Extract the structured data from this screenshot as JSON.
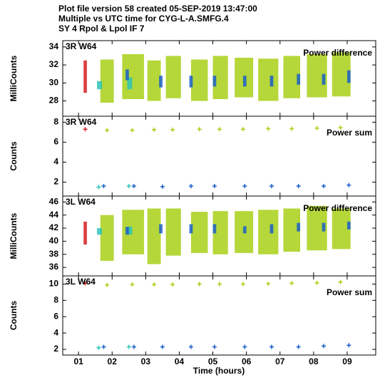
{
  "header": {
    "lines": [
      "Plot file version 58  created 05-SEP-2019 13:47:00",
      "Multiple vs UTC time for CYG-L-A.SMFG.4",
      "SY 4  Rpol & Lpol  IF 7"
    ]
  },
  "x_axis": {
    "label": "Time (hours)",
    "xlim": [
      0.53,
      9.85
    ],
    "xticks": [
      {
        "value": 1,
        "label": "01"
      },
      {
        "value": 2,
        "label": "02"
      },
      {
        "value": 3,
        "label": "03"
      },
      {
        "value": 4,
        "label": "04"
      },
      {
        "value": 5,
        "label": "05"
      },
      {
        "value": 6,
        "label": "06"
      },
      {
        "value": 7,
        "label": "07"
      },
      {
        "value": 8,
        "label": "08"
      },
      {
        "value": 9,
        "label": "09"
      }
    ]
  },
  "chart_data": [
    {
      "type": "range",
      "ylabel": "MilliCounts",
      "panel_label": "3R W64",
      "legend_text": "Power difference",
      "ylim": [
        26.3,
        34.7
      ],
      "yticks": [
        28,
        30,
        32,
        34
      ],
      "series": [
        {
          "color": "#a8d017",
          "start": [
            1.65,
            2.3,
            3.05,
            3.6,
            4.35,
            5.0,
            5.65,
            6.35,
            7.1,
            7.8,
            8.55
          ],
          "end": [
            2.05,
            2.95,
            3.45,
            4.05,
            4.85,
            5.45,
            6.2,
            6.95,
            7.6,
            8.4,
            9.1
          ],
          "low": [
            27.8,
            28.2,
            28.0,
            28.3,
            28.0,
            28.2,
            28.4,
            28.0,
            28.3,
            28.4,
            28.5
          ],
          "high": [
            32.6,
            33.2,
            32.5,
            33.0,
            32.6,
            33.0,
            32.8,
            32.7,
            33.0,
            33.2,
            33.4
          ]
        },
        {
          "color": "#d62020",
          "start": [
            1.15
          ],
          "end": [
            1.25
          ],
          "low": [
            28.9
          ],
          "high": [
            32.5
          ]
        },
        {
          "color": "#2ec4b8",
          "start": [
            1.55,
            2.45
          ],
          "end": [
            1.7,
            2.6
          ],
          "low": [
            29.3,
            29.3
          ],
          "high": [
            30.2,
            30.6
          ]
        },
        {
          "color": "#1a5fc8",
          "start": [
            2.4,
            3.4,
            4.3,
            5.0,
            5.9,
            6.7,
            7.5,
            8.25,
            9.0
          ],
          "end": [
            2.5,
            3.5,
            4.4,
            5.1,
            6.0,
            6.8,
            7.6,
            8.35,
            9.1
          ],
          "low": [
            30.3,
            29.5,
            29.5,
            29.6,
            29.6,
            29.6,
            29.8,
            29.8,
            30.0
          ],
          "high": [
            31.5,
            30.8,
            30.8,
            30.8,
            30.8,
            30.8,
            31.0,
            31.0,
            31.4
          ]
        }
      ]
    },
    {
      "type": "scatter",
      "ylabel": "Counts",
      "panel_label": "3R W64",
      "legend_text": "Power sum",
      "ylim": [
        0.6,
        8.6
      ],
      "yticks": [
        2,
        4,
        6,
        8
      ],
      "series": [
        {
          "color": "#a8d017",
          "x": [
            1.85,
            2.6,
            3.25,
            3.8,
            4.6,
            5.2,
            5.9,
            6.65,
            7.35,
            8.1,
            8.8
          ],
          "values": [
            7.2,
            7.2,
            7.25,
            7.25,
            7.3,
            7.3,
            7.3,
            7.35,
            7.35,
            7.4,
            7.45
          ]
        },
        {
          "color": "#d62020",
          "x": [
            1.2
          ],
          "values": [
            7.3
          ]
        },
        {
          "color": "#2ec4b8",
          "x": [
            1.6,
            2.5
          ],
          "values": [
            1.5,
            1.6
          ]
        },
        {
          "color": "#1a5fc8",
          "x": [
            1.75,
            2.65,
            3.5,
            4.35,
            5.05,
            5.95,
            6.75,
            7.55,
            8.3,
            9.05
          ],
          "values": [
            1.6,
            1.6,
            1.55,
            1.6,
            1.6,
            1.6,
            1.6,
            1.6,
            1.6,
            1.7
          ]
        }
      ]
    },
    {
      "type": "range",
      "ylabel": "MilliCounts",
      "panel_label": "3L W64",
      "legend_text": "Power difference",
      "ylim": [
        34.7,
        46.9
      ],
      "yticks": [
        36,
        38,
        40,
        42,
        44,
        46
      ],
      "series": [
        {
          "color": "#a8d017",
          "start": [
            1.65,
            2.3,
            3.05,
            3.6,
            4.35,
            5.0,
            5.65,
            6.35,
            7.1,
            7.8,
            8.55
          ],
          "end": [
            2.05,
            2.95,
            3.45,
            4.05,
            4.85,
            5.45,
            6.2,
            6.95,
            7.6,
            8.4,
            9.1
          ],
          "low": [
            37.0,
            38.0,
            36.5,
            37.8,
            38.2,
            38.0,
            38.2,
            38.0,
            38.4,
            38.6,
            38.8
          ],
          "high": [
            44.0,
            44.8,
            45.0,
            45.0,
            44.5,
            44.6,
            44.6,
            44.8,
            45.0,
            45.4,
            45.0
          ]
        },
        {
          "color": "#d62020",
          "start": [
            1.15
          ],
          "end": [
            1.25
          ],
          "low": [
            39.5
          ],
          "high": [
            43.0
          ]
        },
        {
          "color": "#2ec4b8",
          "start": [
            1.55,
            2.45
          ],
          "end": [
            1.7,
            2.6
          ],
          "low": [
            41.0,
            41.0
          ],
          "high": [
            42.0,
            42.2
          ]
        },
        {
          "color": "#1a5fc8",
          "start": [
            2.4,
            3.4,
            4.3,
            5.0,
            5.9,
            6.7,
            7.5,
            8.25,
            9.0
          ],
          "end": [
            2.5,
            3.5,
            4.4,
            5.1,
            6.0,
            6.8,
            7.6,
            8.35,
            9.1
          ],
          "low": [
            41.0,
            41.2,
            41.2,
            41.2,
            41.2,
            41.2,
            41.5,
            41.5,
            41.8
          ],
          "high": [
            42.2,
            42.6,
            42.6,
            42.6,
            42.3,
            42.6,
            42.8,
            42.8,
            43.0
          ]
        }
      ]
    },
    {
      "type": "scatter",
      "ylabel": "Counts",
      "panel_label": "3L W64",
      "legend_text": "Power sum",
      "ylim": [
        1.3,
        11.0
      ],
      "yticks": [
        2,
        4,
        6,
        8,
        10
      ],
      "series": [
        {
          "color": "#a8d017",
          "x": [
            1.85,
            2.6,
            3.25,
            3.8,
            4.6,
            5.2,
            5.9,
            6.65,
            7.35,
            8.1,
            8.8
          ],
          "values": [
            9.9,
            9.95,
            9.95,
            9.95,
            10.0,
            10.0,
            10.0,
            10.05,
            10.1,
            10.15,
            10.25
          ]
        },
        {
          "color": "#d62020",
          "x": [
            1.2
          ],
          "values": [
            10.1
          ]
        },
        {
          "color": "#2ec4b8",
          "x": [
            1.6,
            2.5
          ],
          "values": [
            2.2,
            2.3
          ]
        },
        {
          "color": "#1a5fc8",
          "x": [
            1.75,
            2.65,
            3.5,
            4.35,
            5.05,
            5.95,
            6.75,
            7.55,
            8.3,
            9.05
          ],
          "values": [
            2.3,
            2.3,
            2.3,
            2.3,
            2.3,
            2.3,
            2.3,
            2.3,
            2.4,
            2.5
          ]
        }
      ]
    }
  ]
}
